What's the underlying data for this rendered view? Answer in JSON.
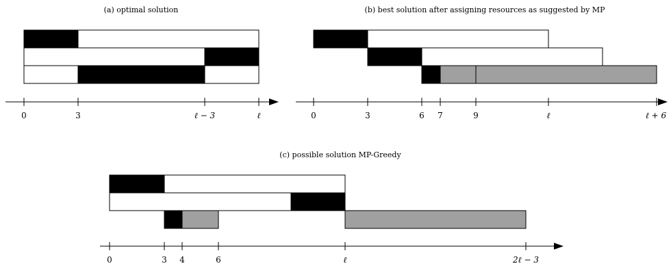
{
  "colors": {
    "black": "#000000",
    "gray": "#a0a0a0",
    "white": "#ffffff"
  },
  "panel_a": {
    "caption": "(a) optimal solution",
    "ticks": [
      "0",
      "3",
      "ℓ − 3",
      "ℓ"
    ]
  },
  "panel_b": {
    "caption": "(b) best solution after assigning resources as suggested by MP",
    "ticks": [
      "0",
      "3",
      "6",
      "7",
      "9",
      "ℓ",
      "ℓ + 6"
    ]
  },
  "panel_c": {
    "caption": "(c) possible solution MP-Greedy",
    "ticks": [
      "0",
      "3",
      "4",
      "6",
      "ℓ",
      "2ℓ − 3"
    ]
  }
}
